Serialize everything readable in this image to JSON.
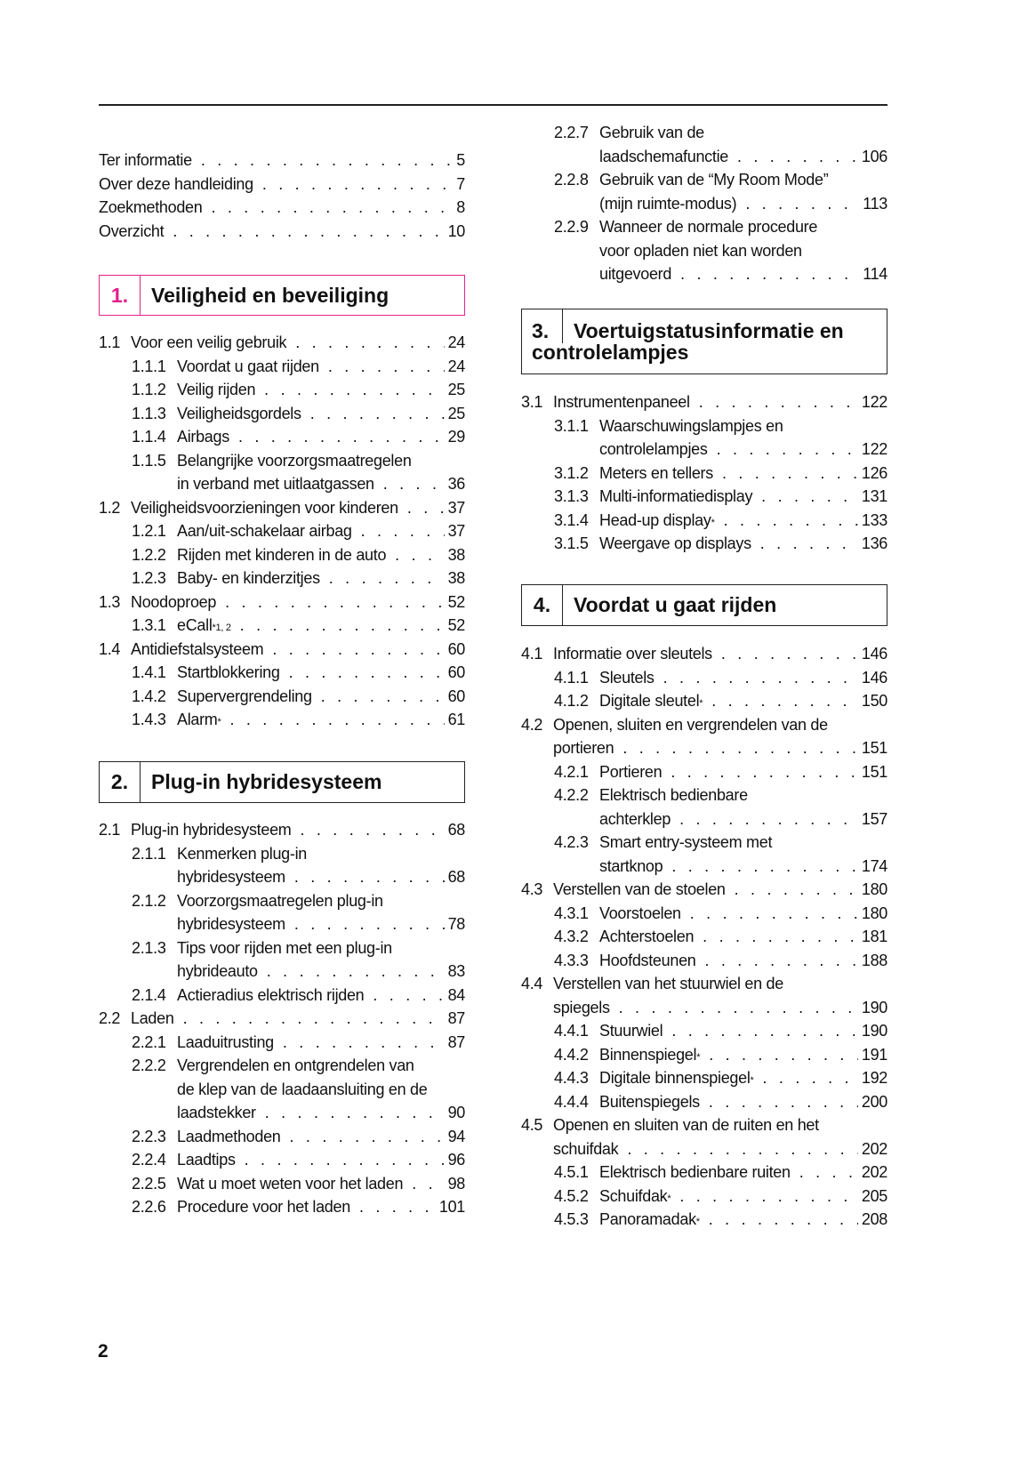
{
  "intro": [
    {
      "num": "",
      "lines": [
        "Ter informatie"
      ],
      "page": "5"
    },
    {
      "num": "",
      "lines": [
        "Over deze handleiding"
      ],
      "page": "7"
    },
    {
      "num": "",
      "lines": [
        "Zoekmethoden"
      ],
      "page": "8"
    },
    {
      "num": "",
      "lines": [
        "Overzicht"
      ],
      "page": "10"
    }
  ],
  "chapters": [
    {
      "number": "1.",
      "title": "Veiligheid en beveiliging",
      "accent": "#e0218a",
      "entries": [
        {
          "num": "1.1",
          "lines": [
            "Voor een veilig gebruik"
          ],
          "page": "24"
        },
        {
          "num": "1.1.1",
          "lines": [
            "Voordat u gaat rijden"
          ],
          "page": "24"
        },
        {
          "num": "1.1.2",
          "lines": [
            "Veilig rijden"
          ],
          "page": "25"
        },
        {
          "num": "1.1.3",
          "lines": [
            "Veiligheidsgordels"
          ],
          "page": "25"
        },
        {
          "num": "1.1.4",
          "lines": [
            "Airbags"
          ],
          "page": "29"
        },
        {
          "num": "1.1.5",
          "lines": [
            "Belangrijke voorzorgsmaatregelen",
            "in verband met uitlaatgassen"
          ],
          "page": "36"
        },
        {
          "num": "1.2",
          "lines": [
            "Veiligheidsvoorzieningen voor kinderen"
          ],
          "page": "37"
        },
        {
          "num": "1.2.1",
          "lines": [
            "Aan/uit-schakelaar airbag"
          ],
          "page": "37"
        },
        {
          "num": "1.2.2",
          "lines": [
            "Rijden met kinderen in de auto"
          ],
          "page": "38"
        },
        {
          "num": "1.2.3",
          "lines": [
            "Baby- en kinderzitjes"
          ],
          "page": "38"
        },
        {
          "num": "1.3",
          "lines": [
            "Noodoproep"
          ],
          "page": "52"
        },
        {
          "num": "1.3.1",
          "lines": [
            "eCall"
          ],
          "sup": "*1, 2",
          "page": "52"
        },
        {
          "num": "1.4",
          "lines": [
            "Antidiefstalsysteem"
          ],
          "page": "60"
        },
        {
          "num": "1.4.1",
          "lines": [
            "Startblokkering"
          ],
          "page": "60"
        },
        {
          "num": "1.4.2",
          "lines": [
            "Supervergrendeling"
          ],
          "page": "60"
        },
        {
          "num": "1.4.3",
          "lines": [
            "Alarm"
          ],
          "sup": "*",
          "page": "61"
        }
      ]
    },
    {
      "number": "2.",
      "title": "Plug-in hybridesysteem",
      "entries": [
        {
          "num": "2.1",
          "lines": [
            "Plug-in hybridesysteem"
          ],
          "page": "68"
        },
        {
          "num": "2.1.1",
          "lines": [
            "Kenmerken plug-in",
            "hybridesysteem"
          ],
          "page": "68"
        },
        {
          "num": "2.1.2",
          "lines": [
            "Voorzorgsmaatregelen plug-in",
            "hybridesysteem"
          ],
          "page": "78"
        },
        {
          "num": "2.1.3",
          "lines": [
            "Tips voor rijden met een plug-in",
            "hybrideauto"
          ],
          "page": "83"
        },
        {
          "num": "2.1.4",
          "lines": [
            "Actieradius elektrisch rijden"
          ],
          "page": "84"
        },
        {
          "num": "2.2",
          "lines": [
            "Laden"
          ],
          "page": "87"
        },
        {
          "num": "2.2.1",
          "lines": [
            "Laaduitrusting"
          ],
          "page": "87"
        },
        {
          "num": "2.2.2",
          "lines": [
            "Vergrendelen en ontgrendelen van",
            "de klep van de laadaansluiting en de",
            "laadstekker"
          ],
          "page": "90"
        },
        {
          "num": "2.2.3",
          "lines": [
            "Laadmethoden"
          ],
          "page": "94"
        },
        {
          "num": "2.2.4",
          "lines": [
            "Laadtips"
          ],
          "page": "96"
        },
        {
          "num": "2.2.5",
          "lines": [
            "Wat u moet weten voor het laden"
          ],
          "page": "98"
        },
        {
          "num": "2.2.6",
          "lines": [
            "Procedure voor het laden"
          ],
          "page": "101"
        },
        {
          "num": "2.2.7",
          "lines": [
            "Gebruik van de",
            "laadschemafunctie"
          ],
          "page": "106"
        },
        {
          "num": "2.2.8",
          "lines": [
            "Gebruik van de “My Room Mode”",
            "(mijn ruimte-modus)"
          ],
          "page": "113"
        },
        {
          "num": "2.2.9",
          "lines": [
            "Wanneer de normale procedure",
            "voor opladen niet kan worden",
            "uitgevoerd"
          ],
          "page": "114"
        }
      ]
    },
    {
      "number": "3.",
      "title_line1": "Voertuigstatusinformatie en",
      "title_line2": "controlelampjes",
      "entries": [
        {
          "num": "3.1",
          "lines": [
            "Instrumentenpaneel"
          ],
          "page": "122"
        },
        {
          "num": "3.1.1",
          "lines": [
            "Waarschuwingslampjes en",
            "controlelampjes"
          ],
          "page": "122"
        },
        {
          "num": "3.1.2",
          "lines": [
            "Meters en tellers"
          ],
          "page": "126"
        },
        {
          "num": "3.1.3",
          "lines": [
            "Multi-informatiedisplay"
          ],
          "page": "131"
        },
        {
          "num": "3.1.4",
          "lines": [
            "Head-up display"
          ],
          "sup": "*",
          "page": "133"
        },
        {
          "num": "3.1.5",
          "lines": [
            "Weergave op displays"
          ],
          "page": "136"
        }
      ]
    },
    {
      "number": "4.",
      "title": "Voordat u gaat rijden",
      "entries": [
        {
          "num": "4.1",
          "lines": [
            "Informatie over sleutels"
          ],
          "page": "146"
        },
        {
          "num": "4.1.1",
          "lines": [
            "Sleutels"
          ],
          "page": "146"
        },
        {
          "num": "4.1.2",
          "lines": [
            "Digitale sleutel"
          ],
          "sup": "*",
          "page": "150"
        },
        {
          "num": "4.2",
          "lines": [
            "Openen, sluiten en vergrendelen van de",
            "portieren"
          ],
          "page": "151"
        },
        {
          "num": "4.2.1",
          "lines": [
            "Portieren"
          ],
          "page": "151"
        },
        {
          "num": "4.2.2",
          "lines": [
            "Elektrisch bedienbare",
            "achterklep"
          ],
          "page": "157"
        },
        {
          "num": "4.2.3",
          "lines": [
            "Smart entry-systeem met",
            "startknop"
          ],
          "page": "174"
        },
        {
          "num": "4.3",
          "lines": [
            "Verstellen van de stoelen"
          ],
          "page": "180"
        },
        {
          "num": "4.3.1",
          "lines": [
            "Voorstoelen"
          ],
          "page": "180"
        },
        {
          "num": "4.3.2",
          "lines": [
            "Achterstoelen"
          ],
          "page": "181"
        },
        {
          "num": "4.3.3",
          "lines": [
            "Hoofdsteunen"
          ],
          "page": "188"
        },
        {
          "num": "4.4",
          "lines": [
            "Verstellen van het stuurwiel en de",
            "spiegels"
          ],
          "page": "190"
        },
        {
          "num": "4.4.1",
          "lines": [
            "Stuurwiel"
          ],
          "page": "190"
        },
        {
          "num": "4.4.2",
          "lines": [
            "Binnenspiegel"
          ],
          "sup": "*",
          "page": "191"
        },
        {
          "num": "4.4.3",
          "lines": [
            "Digitale binnenspiegel"
          ],
          "sup": "*",
          "page": "192"
        },
        {
          "num": "4.4.4",
          "lines": [
            "Buitenspiegels"
          ],
          "page": "200"
        },
        {
          "num": "4.5",
          "lines": [
            "Openen en sluiten van de ruiten en het",
            "schuifdak"
          ],
          "page": "202"
        },
        {
          "num": "4.5.1",
          "lines": [
            "Elektrisch bedienbare ruiten"
          ],
          "page": "202"
        },
        {
          "num": "4.5.2",
          "lines": [
            "Schuifdak"
          ],
          "sup": "*",
          "page": "205"
        },
        {
          "num": "4.5.3",
          "lines": [
            "Panoramadak"
          ],
          "sup": "*",
          "page": "208"
        }
      ]
    }
  ],
  "page_number": "2"
}
